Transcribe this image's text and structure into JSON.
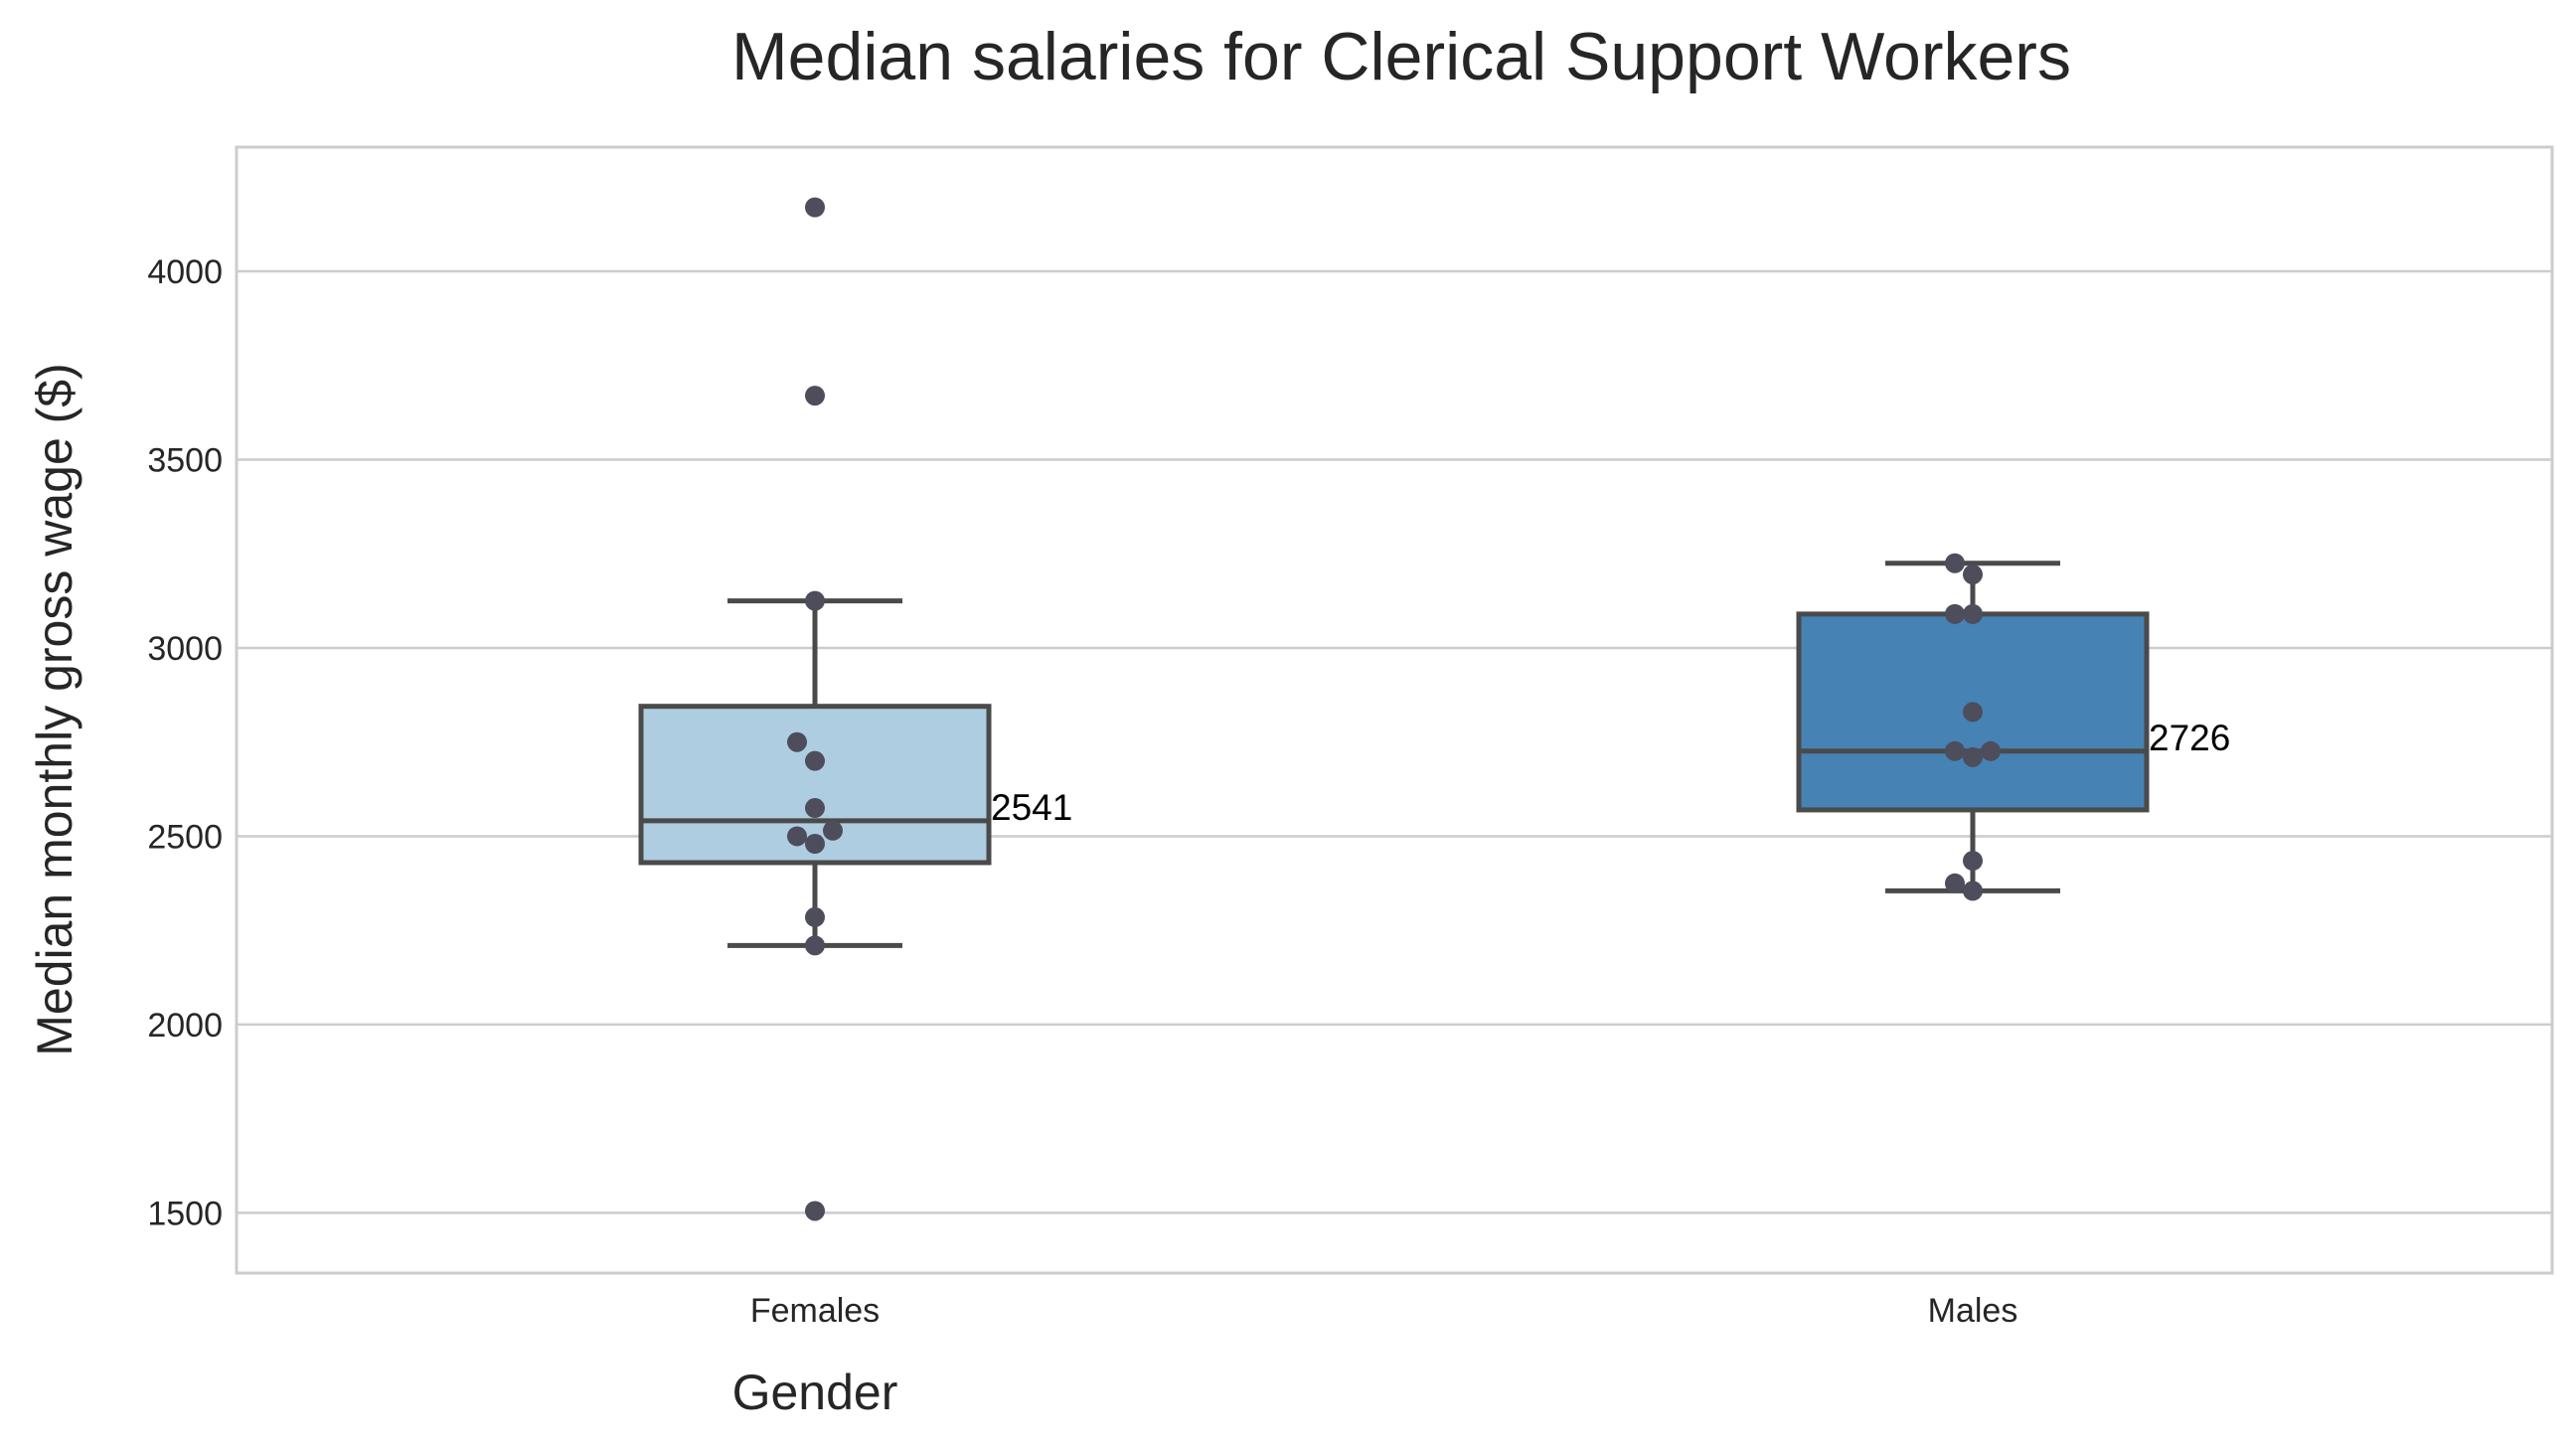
{
  "chart_data": {
    "type": "box",
    "title": "Median salaries for Clerical Support Workers",
    "xlabel": "Gender",
    "ylabel": "Median monthly gross wage ($)",
    "ylim": [
      1340,
      4330
    ],
    "yticks": [
      1500,
      2000,
      2500,
      3000,
      3500,
      4000
    ],
    "grid": true,
    "colors": {
      "frame": "#cccccc",
      "box_line": "#4a4a4a",
      "points": "#4d4d5c",
      "text": "#262626"
    },
    "categories": [
      "Females",
      "Males"
    ],
    "boxes": [
      {
        "name": "Females",
        "color": "#afcde1",
        "whisker_low": 2210,
        "q1": 2430,
        "median": 2541,
        "q3": 2845,
        "whisker_high": 3125,
        "median_label": "2541",
        "points": [
          {
            "value": 4170,
            "jitter": 0
          },
          {
            "value": 3670,
            "jitter": 0
          },
          {
            "value": 3125,
            "jitter": 0
          },
          {
            "value": 2750,
            "jitter": -1
          },
          {
            "value": 2700,
            "jitter": 0
          },
          {
            "value": 2575,
            "jitter": 0
          },
          {
            "value": 2515,
            "jitter": 1
          },
          {
            "value": 2500,
            "jitter": -1
          },
          {
            "value": 2480,
            "jitter": 0
          },
          {
            "value": 2285,
            "jitter": 0
          },
          {
            "value": 2210,
            "jitter": 0
          },
          {
            "value": 1505,
            "jitter": 0
          }
        ]
      },
      {
        "name": "Males",
        "color": "#4682b4",
        "whisker_low": 2355,
        "q1": 2570,
        "median": 2726,
        "q3": 3090,
        "whisker_high": 3225,
        "median_label": "2726",
        "points": [
          {
            "value": 3225,
            "jitter": -1
          },
          {
            "value": 3195,
            "jitter": 0
          },
          {
            "value": 3090,
            "jitter": -1
          },
          {
            "value": 3090,
            "jitter": 0
          },
          {
            "value": 2830,
            "jitter": 0
          },
          {
            "value": 2726,
            "jitter": -1
          },
          {
            "value": 2726,
            "jitter": 1
          },
          {
            "value": 2710,
            "jitter": 0
          },
          {
            "value": 2435,
            "jitter": 0
          },
          {
            "value": 2375,
            "jitter": -1
          },
          {
            "value": 2355,
            "jitter": 0
          }
        ]
      }
    ]
  }
}
